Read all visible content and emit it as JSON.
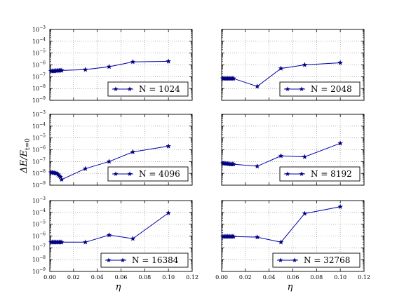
{
  "chart_data": [
    {
      "type": "line",
      "series": [
        {
          "name": "N = 1024",
          "x": [
            0.001,
            0.002,
            0.003,
            0.004,
            0.005,
            0.006,
            0.007,
            0.008,
            0.009,
            0.01,
            0.03,
            0.05,
            0.07,
            0.1
          ],
          "y": [
            3e-07,
            3e-07,
            3e-07,
            3e-07,
            3.2e-07,
            3.2e-07,
            3.3e-07,
            3.3e-07,
            3.4e-07,
            3.4e-07,
            4e-07,
            7e-07,
            1.8e-06,
            2e-06
          ]
        }
      ]
    },
    {
      "type": "line",
      "series": [
        {
          "name": "N = 2048",
          "x": [
            0.001,
            0.002,
            0.003,
            0.004,
            0.005,
            0.006,
            0.007,
            0.008,
            0.009,
            0.01,
            0.03,
            0.05,
            0.07,
            0.1
          ],
          "y": [
            7e-08,
            7e-08,
            7e-08,
            7e-08,
            7e-08,
            7e-08,
            7e-08,
            7e-08,
            7e-08,
            7e-08,
            1.5e-08,
            5e-07,
            1e-06,
            1.5e-06
          ]
        }
      ]
    },
    {
      "type": "line",
      "series": [
        {
          "name": "N = 4096",
          "x": [
            0.001,
            0.002,
            0.003,
            0.004,
            0.005,
            0.006,
            0.007,
            0.008,
            0.009,
            0.01,
            0.03,
            0.05,
            0.07,
            0.1
          ],
          "y": [
            1.2e-08,
            1.2e-08,
            1.1e-08,
            1.1e-08,
            1e-08,
            1e-08,
            8e-09,
            6e-09,
            5e-09,
            3e-09,
            2.5e-08,
            1e-07,
            6.5e-07,
            2e-06
          ]
        }
      ]
    },
    {
      "type": "line",
      "series": [
        {
          "name": "N = 8192",
          "x": [
            0.001,
            0.002,
            0.003,
            0.004,
            0.005,
            0.006,
            0.007,
            0.008,
            0.009,
            0.01,
            0.03,
            0.05,
            0.07,
            0.1
          ],
          "y": [
            7e-08,
            7e-08,
            7e-08,
            6.5e-08,
            6.5e-08,
            6.5e-08,
            6e-08,
            6e-08,
            6e-08,
            6e-08,
            4e-08,
            3e-07,
            2.5e-07,
            3.5e-06
          ]
        }
      ]
    },
    {
      "type": "line",
      "series": [
        {
          "name": "N = 16384",
          "x": [
            0.001,
            0.002,
            0.003,
            0.004,
            0.005,
            0.006,
            0.007,
            0.008,
            0.009,
            0.01,
            0.03,
            0.05,
            0.07,
            0.1
          ],
          "y": [
            3e-07,
            3e-07,
            3e-07,
            3e-07,
            3e-07,
            3e-07,
            3e-07,
            3e-07,
            3e-07,
            3e-07,
            3e-07,
            1.2e-06,
            6e-07,
            9e-05
          ]
        }
      ]
    },
    {
      "type": "line",
      "series": [
        {
          "name": "N = 32768",
          "x": [
            0.001,
            0.002,
            0.003,
            0.004,
            0.005,
            0.006,
            0.007,
            0.008,
            0.009,
            0.01,
            0.03,
            0.05,
            0.07,
            0.1
          ],
          "y": [
            9e-07,
            9e-07,
            9e-07,
            9e-07,
            9e-07,
            9e-07,
            9e-07,
            9e-07,
            9e-07,
            9e-07,
            8e-07,
            3e-07,
            8e-05,
            0.0003
          ]
        }
      ]
    }
  ],
  "axes": {
    "xticks": [
      "0.00",
      "0.02",
      "0.04",
      "0.06",
      "0.08",
      "0.10",
      "0.12"
    ],
    "xlim": [
      0,
      0.12
    ],
    "ylim_exp": [
      -9,
      -3
    ],
    "ytick_base": "10",
    "xlabel": "η",
    "ylabel": "ΔE/E",
    "ylabel_sub": "t=0",
    "yscale": "log",
    "grid": true
  },
  "style": {
    "line_color": "#0000aa",
    "marker_color": "#000080",
    "legend_placement": "lower right"
  }
}
